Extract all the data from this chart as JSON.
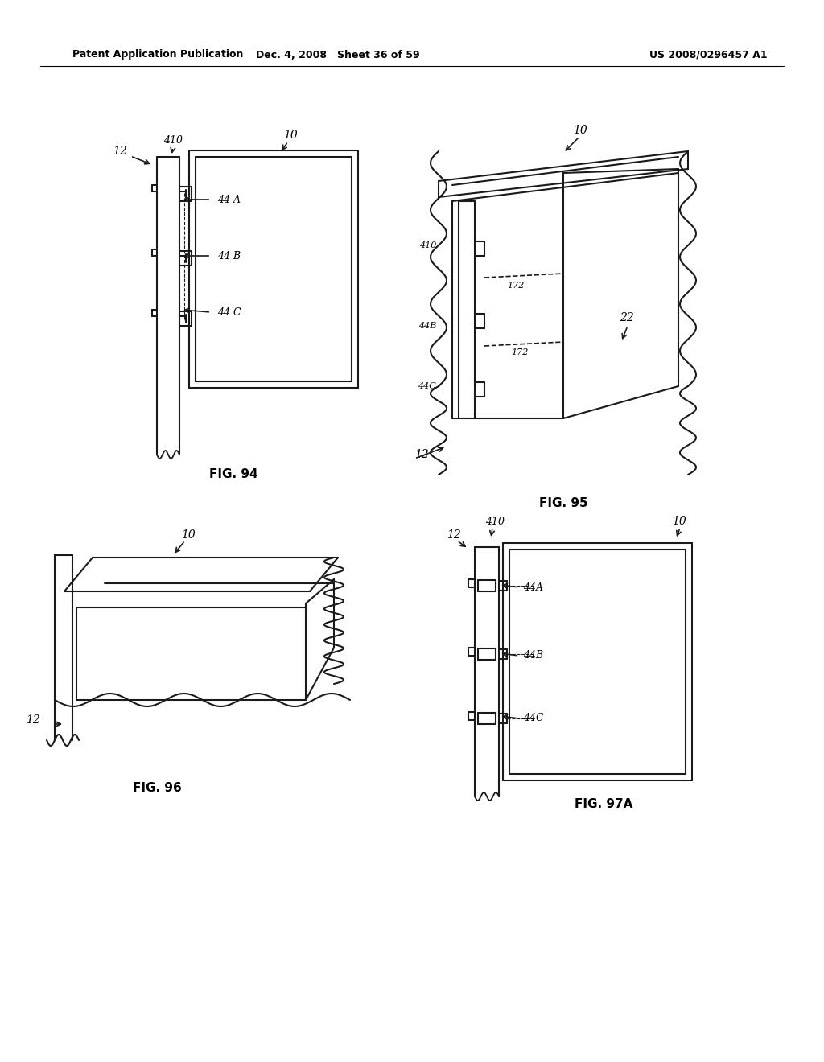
{
  "bg_color": "#ffffff",
  "line_color": "#1a1a1a",
  "line_width": 1.5,
  "header_left": "Patent Application Publication",
  "header_mid": "Dec. 4, 2008   Sheet 36 of 59",
  "header_right": "US 2008/0296457 A1",
  "fig94_label": "FIG. 94",
  "fig95_label": "FIG. 95",
  "fig96_label": "FIG. 96",
  "fig97_label": "FIG. 97A"
}
